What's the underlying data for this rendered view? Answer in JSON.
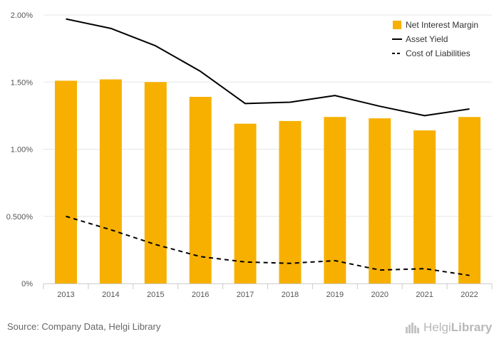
{
  "chart_data": {
    "type": "bar",
    "categories": [
      "2013",
      "2014",
      "2015",
      "2016",
      "2017",
      "2018",
      "2019",
      "2020",
      "2021",
      "2022"
    ],
    "series": [
      {
        "name": "Net Interest Margin",
        "kind": "bar",
        "color": "#F7B000",
        "values": [
          1.51,
          1.52,
          1.5,
          1.39,
          1.19,
          1.21,
          1.24,
          1.23,
          1.14,
          1.24
        ]
      },
      {
        "name": "Asset Yield",
        "kind": "line",
        "style": "solid",
        "color": "#000000",
        "values": [
          1.97,
          1.9,
          1.77,
          1.58,
          1.34,
          1.35,
          1.4,
          1.32,
          1.25,
          1.3
        ]
      },
      {
        "name": "Cost of Liabilities",
        "kind": "line",
        "style": "dashed",
        "color": "#000000",
        "values": [
          0.5,
          0.4,
          0.29,
          0.2,
          0.16,
          0.15,
          0.17,
          0.1,
          0.11,
          0.06
        ]
      }
    ],
    "ylim": [
      0,
      2.0
    ],
    "yticks": [
      0,
      0.5,
      1.0,
      1.5,
      2.0
    ],
    "ytick_labels": [
      "0%",
      "0.500%",
      "1.00%",
      "1.50%",
      "2.00%"
    ],
    "grid": true,
    "legend_position": "top-right"
  },
  "footer": {
    "source": "Source: Company Data, Helgi Library",
    "logo_text_light": "Helgi",
    "logo_text_bold": "Library"
  }
}
